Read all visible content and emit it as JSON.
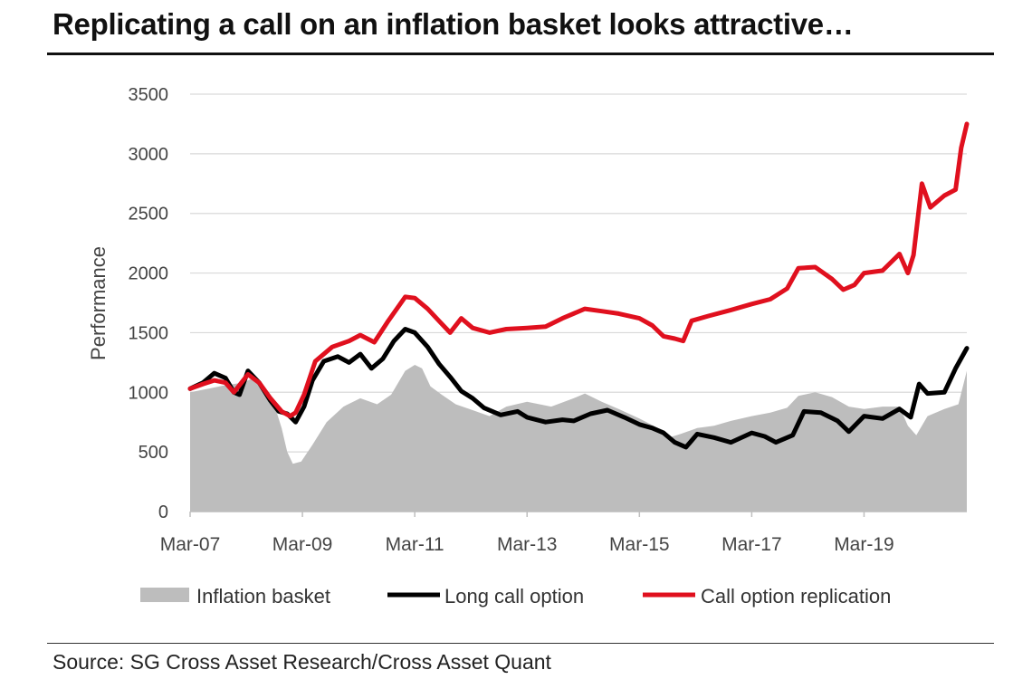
{
  "title": "Replicating a call on an inflation basket looks attractive…",
  "source": "Source: SG Cross Asset Research/Cross Asset Quant",
  "colors": {
    "inflation_basket": "#bdbdbd",
    "long_call_option": "#000000",
    "call_option_replication": "#e0101e",
    "grid": "#d9d9d9"
  },
  "chart_data": {
    "type": "line",
    "ylabel": "Performance",
    "ylim": [
      0,
      3500
    ],
    "yticks": [
      0,
      500,
      1000,
      1500,
      2000,
      2500,
      3000,
      3500
    ],
    "xlim": [
      2007.17,
      2021.0
    ],
    "xticks": [
      {
        "label": "Mar-07",
        "x": 2007.17
      },
      {
        "label": "Mar-09",
        "x": 2009.17
      },
      {
        "label": "Mar-11",
        "x": 2011.17
      },
      {
        "label": "Mar-13",
        "x": 2013.17
      },
      {
        "label": "Mar-15",
        "x": 2015.17
      },
      {
        "label": "Mar-17",
        "x": 2017.17
      },
      {
        "label": "Mar-19",
        "x": 2019.17
      }
    ],
    "grid": "horizontal",
    "legend_position": "bottom",
    "series": [
      {
        "name": "Inflation basket",
        "style": "area",
        "points": [
          [
            2007.17,
            1000
          ],
          [
            2007.5,
            1030
          ],
          [
            2007.8,
            1060
          ],
          [
            2008.1,
            1080
          ],
          [
            2008.35,
            1130
          ],
          [
            2008.55,
            1000
          ],
          [
            2008.7,
            850
          ],
          [
            2008.8,
            700
          ],
          [
            2008.9,
            500
          ],
          [
            2009.0,
            400
          ],
          [
            2009.15,
            420
          ],
          [
            2009.35,
            560
          ],
          [
            2009.6,
            750
          ],
          [
            2009.9,
            880
          ],
          [
            2010.2,
            950
          ],
          [
            2010.5,
            900
          ],
          [
            2010.75,
            980
          ],
          [
            2011.0,
            1180
          ],
          [
            2011.17,
            1230
          ],
          [
            2011.3,
            1200
          ],
          [
            2011.45,
            1050
          ],
          [
            2011.65,
            980
          ],
          [
            2011.9,
            900
          ],
          [
            2012.2,
            850
          ],
          [
            2012.5,
            800
          ],
          [
            2012.8,
            880
          ],
          [
            2013.17,
            920
          ],
          [
            2013.6,
            880
          ],
          [
            2014.0,
            950
          ],
          [
            2014.2,
            990
          ],
          [
            2014.5,
            920
          ],
          [
            2014.8,
            860
          ],
          [
            2015.17,
            780
          ],
          [
            2015.5,
            700
          ],
          [
            2015.7,
            620
          ],
          [
            2015.9,
            650
          ],
          [
            2016.2,
            700
          ],
          [
            2016.5,
            720
          ],
          [
            2016.8,
            760
          ],
          [
            2017.17,
            800
          ],
          [
            2017.5,
            830
          ],
          [
            2017.8,
            870
          ],
          [
            2018.0,
            970
          ],
          [
            2018.3,
            1000
          ],
          [
            2018.6,
            960
          ],
          [
            2018.9,
            880
          ],
          [
            2019.17,
            860
          ],
          [
            2019.5,
            880
          ],
          [
            2019.8,
            880
          ],
          [
            2019.95,
            720
          ],
          [
            2020.1,
            640
          ],
          [
            2020.3,
            800
          ],
          [
            2020.6,
            860
          ],
          [
            2020.85,
            900
          ],
          [
            2021.0,
            1180
          ]
        ]
      },
      {
        "name": "Long call option",
        "style": "line",
        "points": [
          [
            2007.17,
            1030
          ],
          [
            2007.4,
            1080
          ],
          [
            2007.6,
            1160
          ],
          [
            2007.8,
            1120
          ],
          [
            2007.95,
            1000
          ],
          [
            2008.05,
            980
          ],
          [
            2008.2,
            1180
          ],
          [
            2008.4,
            1080
          ],
          [
            2008.6,
            930
          ],
          [
            2008.75,
            840
          ],
          [
            2008.9,
            820
          ],
          [
            2009.05,
            750
          ],
          [
            2009.2,
            880
          ],
          [
            2009.35,
            1100
          ],
          [
            2009.55,
            1260
          ],
          [
            2009.8,
            1300
          ],
          [
            2010.0,
            1250
          ],
          [
            2010.2,
            1320
          ],
          [
            2010.4,
            1200
          ],
          [
            2010.6,
            1280
          ],
          [
            2010.8,
            1430
          ],
          [
            2011.0,
            1530
          ],
          [
            2011.17,
            1500
          ],
          [
            2011.4,
            1380
          ],
          [
            2011.6,
            1240
          ],
          [
            2011.8,
            1130
          ],
          [
            2012.0,
            1010
          ],
          [
            2012.2,
            950
          ],
          [
            2012.4,
            870
          ],
          [
            2012.7,
            810
          ],
          [
            2013.0,
            840
          ],
          [
            2013.17,
            790
          ],
          [
            2013.5,
            750
          ],
          [
            2013.8,
            770
          ],
          [
            2014.0,
            760
          ],
          [
            2014.3,
            820
          ],
          [
            2014.6,
            850
          ],
          [
            2014.9,
            790
          ],
          [
            2015.17,
            730
          ],
          [
            2015.4,
            700
          ],
          [
            2015.6,
            660
          ],
          [
            2015.8,
            580
          ],
          [
            2016.0,
            540
          ],
          [
            2016.2,
            650
          ],
          [
            2016.5,
            620
          ],
          [
            2016.8,
            580
          ],
          [
            2017.17,
            660
          ],
          [
            2017.4,
            630
          ],
          [
            2017.6,
            580
          ],
          [
            2017.9,
            640
          ],
          [
            2018.1,
            840
          ],
          [
            2018.4,
            830
          ],
          [
            2018.7,
            760
          ],
          [
            2018.9,
            670
          ],
          [
            2019.17,
            800
          ],
          [
            2019.5,
            780
          ],
          [
            2019.8,
            860
          ],
          [
            2020.0,
            790
          ],
          [
            2020.15,
            1070
          ],
          [
            2020.3,
            990
          ],
          [
            2020.6,
            1000
          ],
          [
            2020.8,
            1200
          ],
          [
            2021.0,
            1370
          ]
        ]
      },
      {
        "name": "Call option replication",
        "style": "line",
        "points": [
          [
            2007.17,
            1030
          ],
          [
            2007.4,
            1070
          ],
          [
            2007.6,
            1100
          ],
          [
            2007.8,
            1080
          ],
          [
            2007.95,
            1000
          ],
          [
            2008.2,
            1150
          ],
          [
            2008.4,
            1080
          ],
          [
            2008.6,
            950
          ],
          [
            2008.8,
            840
          ],
          [
            2008.95,
            800
          ],
          [
            2009.05,
            830
          ],
          [
            2009.2,
            980
          ],
          [
            2009.4,
            1260
          ],
          [
            2009.7,
            1380
          ],
          [
            2010.0,
            1430
          ],
          [
            2010.2,
            1480
          ],
          [
            2010.45,
            1420
          ],
          [
            2010.7,
            1600
          ],
          [
            2011.0,
            1800
          ],
          [
            2011.17,
            1790
          ],
          [
            2011.4,
            1700
          ],
          [
            2011.6,
            1600
          ],
          [
            2011.8,
            1500
          ],
          [
            2012.0,
            1620
          ],
          [
            2012.2,
            1540
          ],
          [
            2012.5,
            1500
          ],
          [
            2012.8,
            1530
          ],
          [
            2013.17,
            1540
          ],
          [
            2013.5,
            1550
          ],
          [
            2013.8,
            1620
          ],
          [
            2014.2,
            1700
          ],
          [
            2014.5,
            1680
          ],
          [
            2014.8,
            1660
          ],
          [
            2015.17,
            1620
          ],
          [
            2015.4,
            1560
          ],
          [
            2015.6,
            1470
          ],
          [
            2015.8,
            1450
          ],
          [
            2015.95,
            1430
          ],
          [
            2016.1,
            1600
          ],
          [
            2016.4,
            1640
          ],
          [
            2016.8,
            1690
          ],
          [
            2017.17,
            1740
          ],
          [
            2017.5,
            1780
          ],
          [
            2017.8,
            1870
          ],
          [
            2018.0,
            2040
          ],
          [
            2018.3,
            2050
          ],
          [
            2018.6,
            1950
          ],
          [
            2018.8,
            1860
          ],
          [
            2019.0,
            1900
          ],
          [
            2019.17,
            2000
          ],
          [
            2019.5,
            2020
          ],
          [
            2019.8,
            2160
          ],
          [
            2019.95,
            2000
          ],
          [
            2020.05,
            2150
          ],
          [
            2020.2,
            2750
          ],
          [
            2020.35,
            2550
          ],
          [
            2020.6,
            2650
          ],
          [
            2020.8,
            2700
          ],
          [
            2020.9,
            3050
          ],
          [
            2021.0,
            3250
          ]
        ]
      }
    ]
  }
}
